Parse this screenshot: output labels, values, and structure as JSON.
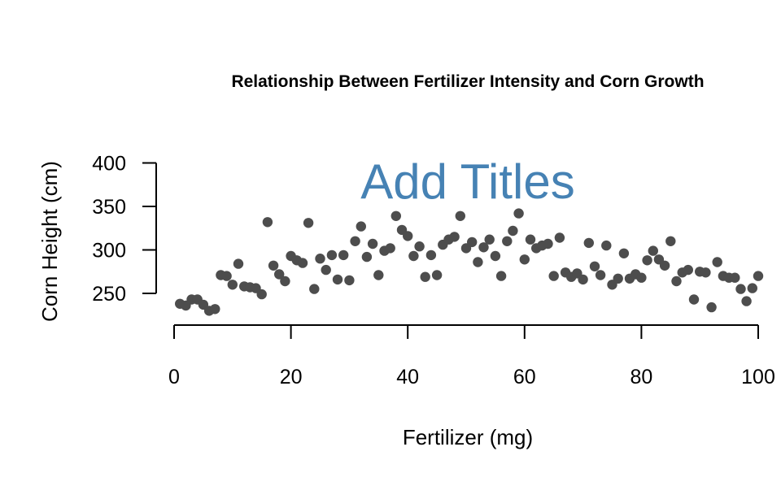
{
  "chart_data": {
    "type": "scatter",
    "title": "Relationship Between Fertilizer Intensity and Corn Growth",
    "xlabel": "Fertilizer (mg)",
    "ylabel": "Corn Height (cm)",
    "annotation": "Add Titles",
    "annotation_color": "#4682b4",
    "point_color": "#4d4d4d",
    "xlim": [
      0,
      100
    ],
    "ylim": [
      215,
      400
    ],
    "x_ticks": [
      0,
      20,
      40,
      60,
      80,
      100
    ],
    "y_ticks": [
      250,
      300,
      350,
      400
    ],
    "grid": false,
    "legend": "none",
    "points": [
      [
        1,
        238
      ],
      [
        2,
        236
      ],
      [
        3,
        243
      ],
      [
        4,
        243
      ],
      [
        5,
        237
      ],
      [
        6,
        230
      ],
      [
        7,
        232
      ],
      [
        8,
        271
      ],
      [
        9,
        270
      ],
      [
        10,
        260
      ],
      [
        11,
        284
      ],
      [
        12,
        258
      ],
      [
        13,
        257
      ],
      [
        14,
        256
      ],
      [
        15,
        249
      ],
      [
        16,
        332
      ],
      [
        17,
        282
      ],
      [
        18,
        272
      ],
      [
        19,
        264
      ],
      [
        20,
        293
      ],
      [
        21,
        288
      ],
      [
        22,
        285
      ],
      [
        23,
        331
      ],
      [
        24,
        255
      ],
      [
        25,
        290
      ],
      [
        26,
        277
      ],
      [
        27,
        294
      ],
      [
        28,
        266
      ],
      [
        29,
        294
      ],
      [
        30,
        265
      ],
      [
        31,
        310
      ],
      [
        32,
        327
      ],
      [
        33,
        292
      ],
      [
        34,
        307
      ],
      [
        35,
        271
      ],
      [
        36,
        299
      ],
      [
        37,
        302
      ],
      [
        38,
        339
      ],
      [
        39,
        323
      ],
      [
        40,
        316
      ],
      [
        41,
        293
      ],
      [
        42,
        304
      ],
      [
        43,
        269
      ],
      [
        44,
        294
      ],
      [
        45,
        271
      ],
      [
        46,
        306
      ],
      [
        47,
        312
      ],
      [
        48,
        315
      ],
      [
        49,
        339
      ],
      [
        50,
        302
      ],
      [
        51,
        309
      ],
      [
        52,
        286
      ],
      [
        53,
        303
      ],
      [
        54,
        312
      ],
      [
        55,
        293
      ],
      [
        56,
        270
      ],
      [
        57,
        310
      ],
      [
        58,
        322
      ],
      [
        59,
        342
      ],
      [
        60,
        289
      ],
      [
        61,
        312
      ],
      [
        62,
        302
      ],
      [
        63,
        305
      ],
      [
        64,
        307
      ],
      [
        65,
        270
      ],
      [
        66,
        314
      ],
      [
        67,
        274
      ],
      [
        68,
        269
      ],
      [
        69,
        273
      ],
      [
        70,
        266
      ],
      [
        71,
        308
      ],
      [
        72,
        281
      ],
      [
        73,
        271
      ],
      [
        74,
        305
      ],
      [
        75,
        260
      ],
      [
        76,
        267
      ],
      [
        77,
        296
      ],
      [
        78,
        267
      ],
      [
        79,
        272
      ],
      [
        80,
        268
      ],
      [
        81,
        288
      ],
      [
        82,
        299
      ],
      [
        83,
        289
      ],
      [
        84,
        282
      ],
      [
        85,
        310
      ],
      [
        86,
        264
      ],
      [
        87,
        274
      ],
      [
        88,
        277
      ],
      [
        89,
        243
      ],
      [
        90,
        275
      ],
      [
        91,
        274
      ],
      [
        92,
        234
      ],
      [
        93,
        286
      ],
      [
        94,
        270
      ],
      [
        95,
        268
      ],
      [
        96,
        268
      ],
      [
        97,
        255
      ],
      [
        98,
        241
      ],
      [
        99,
        256
      ],
      [
        100,
        270
      ]
    ]
  }
}
